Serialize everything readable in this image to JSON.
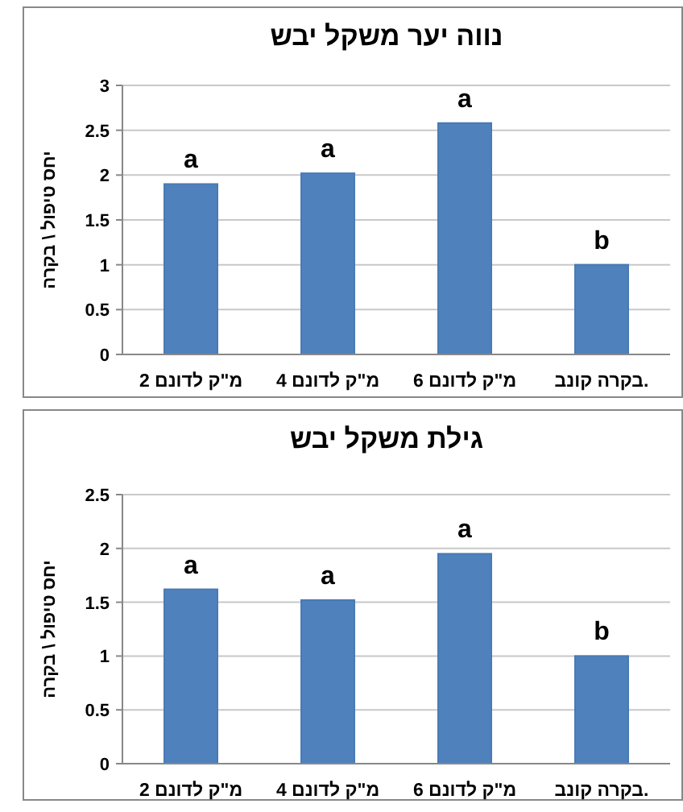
{
  "chart_data": [
    {
      "type": "bar",
      "title": "נווה יער משקל יבש",
      "ylabel": "יחס טיפול \\ בקרה",
      "categories": [
        "2 מ\"ק לדונם",
        "4 מ\"ק לדונם",
        "6 מ\"ק לדונם",
        "בקרה קונב."
      ],
      "values": [
        1.9,
        2.02,
        2.58,
        1.0
      ],
      "color": "#4f81bd",
      "ylim": [
        0,
        3
      ],
      "yticks": [
        0,
        0.5,
        1,
        1.5,
        2,
        2.5,
        3
      ],
      "grid": "y",
      "annotations": [
        {
          "text": "a",
          "x": "2 מ\"ק לדונם",
          "y": 1.9
        },
        {
          "text": "a",
          "x": "4 מ\"ק לדונם",
          "y": 2.02
        },
        {
          "text": "a",
          "x": "6 מ\"ק לדונם",
          "y": 2.58
        },
        {
          "text": "b",
          "x": "בקרה קונב.",
          "y": 1.0
        }
      ]
    },
    {
      "type": "bar",
      "title": "גילת משקל יבש",
      "ylabel": "יחס טיפול \\ בקרה",
      "categories": [
        "2 מ\"ק לדונם",
        "4 מ\"ק לדונם",
        "6 מ\"ק לדונם",
        "בקרה קונב."
      ],
      "values": [
        1.62,
        1.52,
        1.95,
        1.0
      ],
      "color": "#4f81bd",
      "ylim": [
        0,
        2.5
      ],
      "yticks": [
        0,
        0.5,
        1,
        1.5,
        2,
        2.5
      ],
      "grid": "y",
      "annotations": [
        {
          "text": "a",
          "x": "2 מ\"ק לדונם",
          "y": 1.62
        },
        {
          "text": "a",
          "x": "4 מ\"ק לדונם",
          "y": 1.52
        },
        {
          "text": "a",
          "x": "6 מ\"ק לדונם",
          "y": 1.95
        },
        {
          "text": "b",
          "x": "בקרה קונב.",
          "y": 1.0
        }
      ]
    }
  ]
}
